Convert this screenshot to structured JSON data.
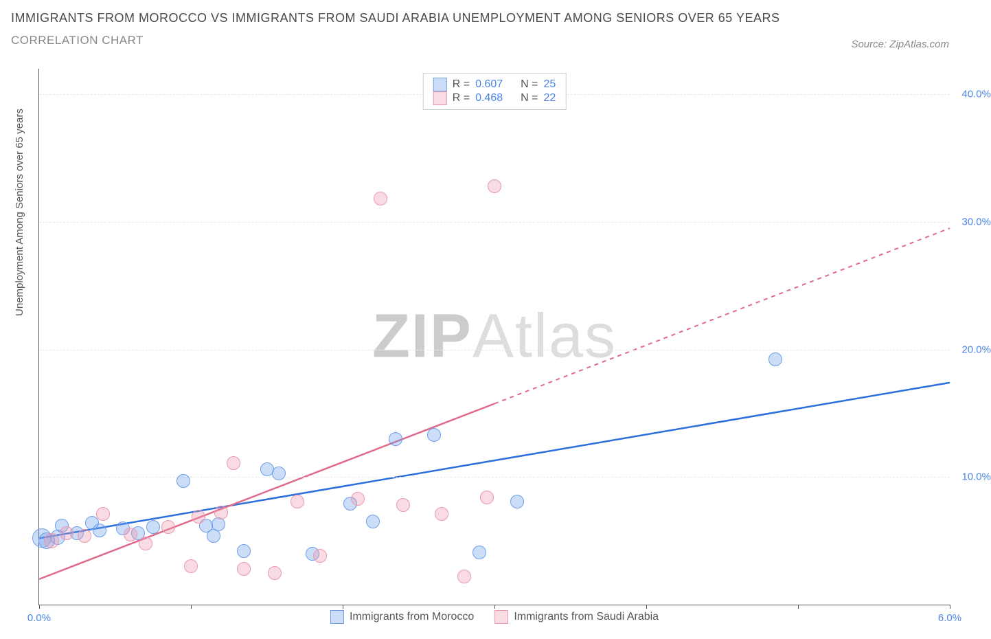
{
  "title": "IMMIGRANTS FROM MOROCCO VS IMMIGRANTS FROM SAUDI ARABIA UNEMPLOYMENT AMONG SENIORS OVER 65 YEARS",
  "subtitle": "CORRELATION CHART",
  "source": "Source: ZipAtlas.com",
  "watermark_bold": "ZIP",
  "watermark_light": "Atlas",
  "y_axis_label": "Unemployment Among Seniors over 65 years",
  "chart": {
    "type": "scatter",
    "background_color": "#ffffff",
    "grid_color": "#e8e8e8",
    "axis_color": "#555555",
    "label_color": "#4a86e8",
    "xlim": [
      0.0,
      6.0
    ],
    "ylim": [
      0.0,
      42.0
    ],
    "x_ticks": [
      0.0,
      1.0,
      2.0,
      3.0,
      4.0,
      5.0,
      6.0
    ],
    "x_tick_labels": {
      "0": "0.0%",
      "6": "6.0%"
    },
    "y_ticks": [
      10.0,
      20.0,
      30.0,
      40.0
    ],
    "y_tick_labels": [
      "10.0%",
      "20.0%",
      "30.0%",
      "40.0%"
    ],
    "series": [
      {
        "name": "Immigrants from Morocco",
        "fill_color": "rgba(109,158,235,0.35)",
        "stroke_color": "#6d9eeb",
        "trend_color": "#2a6fdb",
        "R": "0.607",
        "N": "25",
        "trend": {
          "x1": 0.0,
          "y1": 5.2,
          "x2": 6.0,
          "y2": 17.4,
          "solid_until_x": 6.0
        },
        "points": [
          {
            "x": 0.02,
            "y": 5.2,
            "r": 13
          },
          {
            "x": 0.05,
            "y": 5.0,
            "r": 11
          },
          {
            "x": 0.12,
            "y": 5.3,
            "r": 10
          },
          {
            "x": 0.15,
            "y": 6.2,
            "r": 9
          },
          {
            "x": 0.25,
            "y": 5.6,
            "r": 9
          },
          {
            "x": 0.35,
            "y": 6.4,
            "r": 9
          },
          {
            "x": 0.4,
            "y": 5.8,
            "r": 9
          },
          {
            "x": 0.55,
            "y": 6.0,
            "r": 9
          },
          {
            "x": 0.65,
            "y": 5.6,
            "r": 9
          },
          {
            "x": 0.75,
            "y": 6.1,
            "r": 9
          },
          {
            "x": 0.95,
            "y": 9.7,
            "r": 9
          },
          {
            "x": 1.1,
            "y": 6.2,
            "r": 9
          },
          {
            "x": 1.15,
            "y": 5.4,
            "r": 9
          },
          {
            "x": 1.18,
            "y": 6.3,
            "r": 9
          },
          {
            "x": 1.35,
            "y": 4.2,
            "r": 9
          },
          {
            "x": 1.5,
            "y": 10.6,
            "r": 9
          },
          {
            "x": 1.58,
            "y": 10.3,
            "r": 9
          },
          {
            "x": 1.8,
            "y": 4.0,
            "r": 9
          },
          {
            "x": 2.05,
            "y": 7.9,
            "r": 9
          },
          {
            "x": 2.2,
            "y": 6.5,
            "r": 9
          },
          {
            "x": 2.35,
            "y": 13.0,
            "r": 9
          },
          {
            "x": 2.6,
            "y": 13.3,
            "r": 9
          },
          {
            "x": 2.9,
            "y": 4.1,
            "r": 9
          },
          {
            "x": 3.15,
            "y": 8.1,
            "r": 9
          },
          {
            "x": 4.85,
            "y": 19.2,
            "r": 9
          }
        ]
      },
      {
        "name": "Immigrants from Saudi Arabia",
        "fill_color": "rgba(234,153,175,0.35)",
        "stroke_color": "#ea99af",
        "trend_color": "#e06a8a",
        "R": "0.468",
        "N": "22",
        "trend": {
          "x1": 0.0,
          "y1": 2.0,
          "x2": 6.0,
          "y2": 29.5,
          "solid_until_x": 3.0
        },
        "points": [
          {
            "x": 0.08,
            "y": 5.0,
            "r": 10
          },
          {
            "x": 0.18,
            "y": 5.6,
            "r": 9
          },
          {
            "x": 0.3,
            "y": 5.4,
            "r": 9
          },
          {
            "x": 0.42,
            "y": 7.1,
            "r": 9
          },
          {
            "x": 0.6,
            "y": 5.5,
            "r": 9
          },
          {
            "x": 0.7,
            "y": 4.8,
            "r": 9
          },
          {
            "x": 0.85,
            "y": 6.1,
            "r": 9
          },
          {
            "x": 1.0,
            "y": 3.0,
            "r": 9
          },
          {
            "x": 1.05,
            "y": 6.9,
            "r": 9
          },
          {
            "x": 1.2,
            "y": 7.2,
            "r": 9
          },
          {
            "x": 1.28,
            "y": 11.1,
            "r": 9
          },
          {
            "x": 1.35,
            "y": 2.8,
            "r": 9
          },
          {
            "x": 1.55,
            "y": 2.5,
            "r": 9
          },
          {
            "x": 1.7,
            "y": 8.1,
            "r": 9
          },
          {
            "x": 1.85,
            "y": 3.8,
            "r": 9
          },
          {
            "x": 2.1,
            "y": 8.3,
            "r": 9
          },
          {
            "x": 2.25,
            "y": 31.8,
            "r": 9
          },
          {
            "x": 2.4,
            "y": 7.8,
            "r": 9
          },
          {
            "x": 2.65,
            "y": 7.1,
            "r": 9
          },
          {
            "x": 2.8,
            "y": 2.2,
            "r": 9
          },
          {
            "x": 2.95,
            "y": 8.4,
            "r": 9
          },
          {
            "x": 3.0,
            "y": 32.8,
            "r": 9
          }
        ]
      }
    ]
  }
}
